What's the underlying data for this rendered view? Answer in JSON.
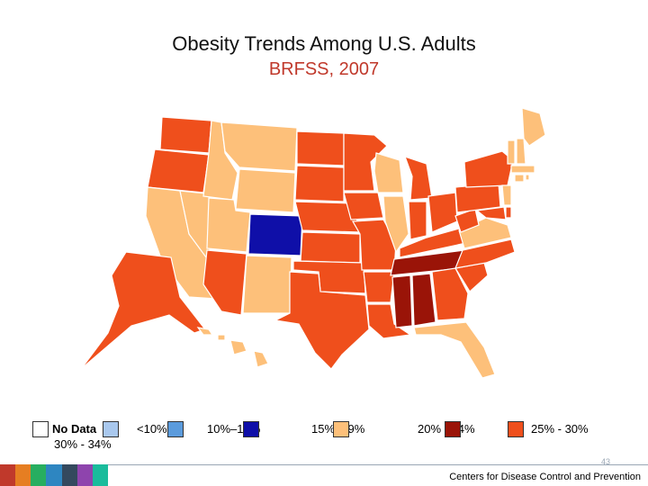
{
  "title": "Obesity Trends Among U.S. Adults",
  "subtitle": "BRFSS, 2007",
  "legend": [
    {
      "label": "No Data",
      "color": "#ffffff"
    },
    {
      "label": "<10%",
      "color": "#a9c8ee"
    },
    {
      "label": "10%–14%",
      "color": "#5b9bdc"
    },
    {
      "label": "15%–19%",
      "color": "#0f0fa8"
    },
    {
      "label": "20% - 24%",
      "color": "#fdc07a"
    },
    {
      "label": "25% - 30%",
      "color": "#ef4f1c"
    },
    {
      "label": "30% - 34%",
      "color": "#9a1408"
    }
  ],
  "map": {
    "categories": {
      "c25": "#ef4f1c",
      "c20": "#fdc07a",
      "c15": "#0f0fa8",
      "c30": "#9a1408"
    },
    "states": {
      "Washington": "c25",
      "Oregon": "c25",
      "California": "c20",
      "Nevada": "c20",
      "Idaho": "c20",
      "Montana": "c20",
      "Wyoming": "c20",
      "Utah": "c20",
      "Arizona": "c25",
      "New Mexico": "c20",
      "Colorado": "c15",
      "North Dakota": "c25",
      "South Dakota": "c25",
      "Nebraska": "c25",
      "Kansas": "c25",
      "Oklahoma": "c25",
      "Texas": "c25",
      "Minnesota": "c25",
      "Iowa": "c25",
      "Missouri": "c25",
      "Arkansas": "c25",
      "Louisiana": "c25",
      "Wisconsin": "c20",
      "Illinois": "c20",
      "Michigan": "c25",
      "Indiana": "c25",
      "Ohio": "c25",
      "Kentucky": "c25",
      "Tennessee": "c30",
      "Mississippi": "c30",
      "Alabama": "c30",
      "Georgia": "c25",
      "Florida": "c20",
      "South Carolina": "c25",
      "North Carolina": "c25",
      "Virginia": "c20",
      "West Virginia": "c25",
      "Pennsylvania": "c25",
      "New York": "c25",
      "Maryland": "c25",
      "Delaware": "c25",
      "New Jersey": "c20",
      "Connecticut": "c20",
      "Rhode Island": "c20",
      "Massachusetts": "c20",
      "Vermont": "c20",
      "New Hampshire": "c20",
      "Maine": "c20",
      "Alaska": "c25",
      "Hawaii": "c20"
    }
  },
  "footer": {
    "page": "43",
    "org": "Centers for Disease Control and Prevention",
    "bar_colors": [
      "#c0392b",
      "#e67e22",
      "#27ae60",
      "#2e86c1",
      "#34495e",
      "#8e44ad",
      "#1abc9c"
    ]
  }
}
